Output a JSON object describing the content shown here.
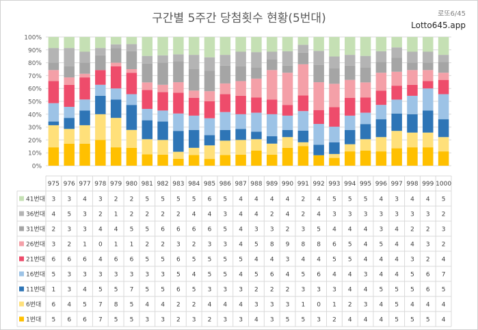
{
  "header": {
    "title": "구간별 5주간 당첨횟수 현황(5번대)",
    "brand_line1": "로또6/45",
    "brand_line2": "Lotto645.app"
  },
  "chart_data": {
    "type": "bar",
    "stacked": "percent",
    "title": "구간별 5주간 당첨횟수 현황(5번대)",
    "categories": [
      "975",
      "976",
      "977",
      "978",
      "979",
      "980",
      "981",
      "982",
      "983",
      "984",
      "985",
      "986",
      "987",
      "988",
      "989",
      "990",
      "991",
      "992",
      "993",
      "994",
      "995",
      "996",
      "997",
      "998",
      "999",
      "1000"
    ],
    "y_ticks": [
      "0%",
      "10%",
      "20%",
      "30%",
      "40%",
      "50%",
      "60%",
      "70%",
      "80%",
      "90%",
      "100%"
    ],
    "ylim": [
      0,
      100
    ],
    "grid": true,
    "legend": "table-left",
    "series": [
      {
        "name": "41번대",
        "color": "#c5e0b4",
        "values": [
          3,
          3,
          4,
          3,
          2,
          2,
          5,
          5,
          5,
          5,
          6,
          5,
          4,
          4,
          4,
          4,
          2,
          4,
          5,
          5,
          5,
          4,
          3,
          4,
          4,
          5
        ]
      },
      {
        "name": "36번대",
        "color": "#b4b4b4",
        "values": [
          4,
          5,
          3,
          2,
          1,
          2,
          2,
          2,
          2,
          4,
          4,
          3,
          4,
          4,
          2,
          4,
          2,
          4,
          3,
          3,
          3,
          3,
          3,
          3,
          3,
          2
        ]
      },
      {
        "name": "31번대",
        "color": "#a5a5a5",
        "values": [
          2,
          3,
          3,
          4,
          4,
          5,
          5,
          6,
          6,
          6,
          6,
          5,
          4,
          3,
          3,
          2,
          3,
          5,
          4,
          4,
          4,
          3,
          4,
          2,
          2,
          3
        ]
      },
      {
        "name": "26번대",
        "color": "#f4a0a8",
        "values": [
          3,
          2,
          1,
          0,
          1,
          1,
          2,
          2,
          3,
          2,
          3,
          3,
          4,
          5,
          8,
          9,
          8,
          8,
          6,
          5,
          4,
          5,
          4,
          4,
          3,
          2
        ]
      },
      {
        "name": "21번대",
        "color": "#ee4c6b",
        "values": [
          6,
          6,
          6,
          4,
          6,
          6,
          5,
          5,
          6,
          5,
          5,
          5,
          5,
          4,
          4,
          3,
          4,
          4,
          5,
          5,
          4,
          4,
          4,
          3,
          2,
          4
        ]
      },
      {
        "name": "16번대",
        "color": "#9dc3e6",
        "values": [
          5,
          3,
          3,
          3,
          3,
          3,
          3,
          3,
          5,
          4,
          5,
          5,
          4,
          5,
          6,
          4,
          5,
          6,
          4,
          4,
          3,
          4,
          4,
          5,
          6,
          7
        ]
      },
      {
        "name": "11번대",
        "color": "#2e75b6",
        "values": [
          1,
          3,
          4,
          5,
          5,
          7,
          5,
          5,
          6,
          5,
          3,
          3,
          3,
          2,
          2,
          2,
          3,
          3,
          3,
          4,
          4,
          5,
          5,
          5,
          6,
          5
        ]
      },
      {
        "name": "6번대",
        "color": "#ffe07a",
        "values": [
          6,
          4,
          5,
          7,
          8,
          5,
          4,
          4,
          2,
          2,
          4,
          4,
          4,
          3,
          3,
          3,
          1,
          0,
          1,
          2,
          3,
          4,
          5,
          4,
          4,
          4
        ]
      },
      {
        "name": "1번대",
        "color": "#ffc000",
        "values": [
          5,
          6,
          6,
          7,
          5,
          5,
          3,
          3,
          2,
          3,
          2,
          3,
          3,
          4,
          3,
          5,
          5,
          3,
          2,
          4,
          4,
          4,
          5,
          5,
          5,
          4
        ]
      }
    ]
  }
}
